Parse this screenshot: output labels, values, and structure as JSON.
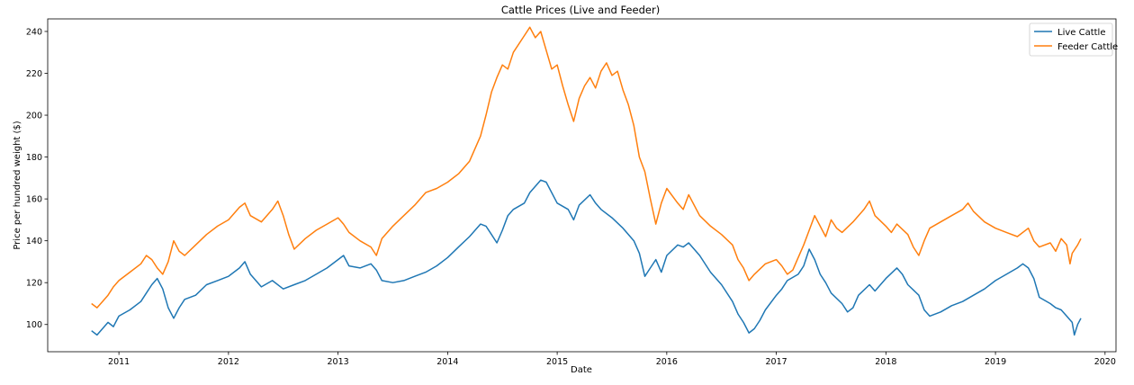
{
  "chart_data": {
    "type": "line",
    "title": "Cattle Prices (Live and Feeder)",
    "xlabel": "Date",
    "ylabel": "Price per hundred weight ($)",
    "xlim": [
      2010.35,
      2020.1
    ],
    "ylim": [
      87,
      246
    ],
    "x_ticks": [
      "2011",
      "2012",
      "2013",
      "2014",
      "2015",
      "2016",
      "2017",
      "2018",
      "2019",
      "2020"
    ],
    "y_ticks": [
      100,
      120,
      140,
      160,
      180,
      200,
      220,
      240
    ],
    "grid": false,
    "legend_position": "top-right",
    "series": [
      {
        "name": "Live Cattle",
        "color": "#1f77b4",
        "points": [
          [
            2010.75,
            97
          ],
          [
            2010.8,
            95
          ],
          [
            2010.85,
            98
          ],
          [
            2010.9,
            101
          ],
          [
            2010.95,
            99
          ],
          [
            2011.0,
            104
          ],
          [
            2011.1,
            107
          ],
          [
            2011.2,
            111
          ],
          [
            2011.25,
            115
          ],
          [
            2011.3,
            119
          ],
          [
            2011.35,
            122
          ],
          [
            2011.4,
            117
          ],
          [
            2011.45,
            108
          ],
          [
            2011.5,
            103
          ],
          [
            2011.55,
            108
          ],
          [
            2011.6,
            112
          ],
          [
            2011.7,
            114
          ],
          [
            2011.8,
            119
          ],
          [
            2011.9,
            121
          ],
          [
            2012.0,
            123
          ],
          [
            2012.1,
            127
          ],
          [
            2012.15,
            130
          ],
          [
            2012.2,
            124
          ],
          [
            2012.3,
            118
          ],
          [
            2012.4,
            121
          ],
          [
            2012.5,
            117
          ],
          [
            2012.6,
            119
          ],
          [
            2012.7,
            121
          ],
          [
            2012.8,
            124
          ],
          [
            2012.9,
            127
          ],
          [
            2013.0,
            131
          ],
          [
            2013.05,
            133
          ],
          [
            2013.1,
            128
          ],
          [
            2013.2,
            127
          ],
          [
            2013.3,
            129
          ],
          [
            2013.35,
            126
          ],
          [
            2013.4,
            121
          ],
          [
            2013.5,
            120
          ],
          [
            2013.6,
            121
          ],
          [
            2013.7,
            123
          ],
          [
            2013.8,
            125
          ],
          [
            2013.9,
            128
          ],
          [
            2014.0,
            132
          ],
          [
            2014.1,
            137
          ],
          [
            2014.2,
            142
          ],
          [
            2014.3,
            148
          ],
          [
            2014.35,
            147
          ],
          [
            2014.4,
            143
          ],
          [
            2014.45,
            139
          ],
          [
            2014.5,
            145
          ],
          [
            2014.55,
            152
          ],
          [
            2014.6,
            155
          ],
          [
            2014.7,
            158
          ],
          [
            2014.75,
            163
          ],
          [
            2014.85,
            169
          ],
          [
            2014.9,
            168
          ],
          [
            2015.0,
            158
          ],
          [
            2015.1,
            155
          ],
          [
            2015.15,
            150
          ],
          [
            2015.2,
            157
          ],
          [
            2015.3,
            162
          ],
          [
            2015.35,
            158
          ],
          [
            2015.4,
            155
          ],
          [
            2015.5,
            151
          ],
          [
            2015.6,
            146
          ],
          [
            2015.7,
            140
          ],
          [
            2015.75,
            134
          ],
          [
            2015.8,
            123
          ],
          [
            2015.85,
            127
          ],
          [
            2015.9,
            131
          ],
          [
            2015.95,
            125
          ],
          [
            2016.0,
            133
          ],
          [
            2016.1,
            138
          ],
          [
            2016.15,
            137
          ],
          [
            2016.2,
            139
          ],
          [
            2016.3,
            133
          ],
          [
            2016.4,
            125
          ],
          [
            2016.5,
            119
          ],
          [
            2016.6,
            111
          ],
          [
            2016.65,
            105
          ],
          [
            2016.7,
            101
          ],
          [
            2016.75,
            96
          ],
          [
            2016.8,
            98
          ],
          [
            2016.85,
            102
          ],
          [
            2016.9,
            107
          ],
          [
            2017.0,
            114
          ],
          [
            2017.05,
            117
          ],
          [
            2017.1,
            121
          ],
          [
            2017.2,
            124
          ],
          [
            2017.25,
            128
          ],
          [
            2017.3,
            136
          ],
          [
            2017.35,
            131
          ],
          [
            2017.4,
            124
          ],
          [
            2017.45,
            120
          ],
          [
            2017.5,
            115
          ],
          [
            2017.6,
            110
          ],
          [
            2017.65,
            106
          ],
          [
            2017.7,
            108
          ],
          [
            2017.75,
            114
          ],
          [
            2017.85,
            119
          ],
          [
            2017.9,
            116
          ],
          [
            2018.0,
            122
          ],
          [
            2018.1,
            127
          ],
          [
            2018.15,
            124
          ],
          [
            2018.2,
            119
          ],
          [
            2018.3,
            114
          ],
          [
            2018.35,
            107
          ],
          [
            2018.4,
            104
          ],
          [
            2018.5,
            106
          ],
          [
            2018.6,
            109
          ],
          [
            2018.7,
            111
          ],
          [
            2018.8,
            114
          ],
          [
            2018.9,
            117
          ],
          [
            2019.0,
            121
          ],
          [
            2019.1,
            124
          ],
          [
            2019.2,
            127
          ],
          [
            2019.25,
            129
          ],
          [
            2019.3,
            127
          ],
          [
            2019.35,
            122
          ],
          [
            2019.4,
            113
          ],
          [
            2019.5,
            110
          ],
          [
            2019.55,
            108
          ],
          [
            2019.6,
            107
          ],
          [
            2019.65,
            104
          ],
          [
            2019.7,
            101
          ],
          [
            2019.72,
            95
          ],
          [
            2019.75,
            100
          ],
          [
            2019.78,
            103
          ]
        ]
      },
      {
        "name": "Feeder Cattle",
        "color": "#ff7f0e",
        "points": [
          [
            2010.75,
            110
          ],
          [
            2010.8,
            108
          ],
          [
            2010.85,
            111
          ],
          [
            2010.9,
            114
          ],
          [
            2010.95,
            118
          ],
          [
            2011.0,
            121
          ],
          [
            2011.1,
            125
          ],
          [
            2011.2,
            129
          ],
          [
            2011.25,
            133
          ],
          [
            2011.3,
            131
          ],
          [
            2011.35,
            127
          ],
          [
            2011.4,
            124
          ],
          [
            2011.45,
            130
          ],
          [
            2011.5,
            140
          ],
          [
            2011.55,
            135
          ],
          [
            2011.6,
            133
          ],
          [
            2011.7,
            138
          ],
          [
            2011.8,
            143
          ],
          [
            2011.9,
            147
          ],
          [
            2012.0,
            150
          ],
          [
            2012.1,
            156
          ],
          [
            2012.15,
            158
          ],
          [
            2012.2,
            152
          ],
          [
            2012.3,
            149
          ],
          [
            2012.4,
            155
          ],
          [
            2012.45,
            159
          ],
          [
            2012.5,
            152
          ],
          [
            2012.55,
            143
          ],
          [
            2012.6,
            136
          ],
          [
            2012.7,
            141
          ],
          [
            2012.8,
            145
          ],
          [
            2012.9,
            148
          ],
          [
            2013.0,
            151
          ],
          [
            2013.05,
            148
          ],
          [
            2013.1,
            144
          ],
          [
            2013.2,
            140
          ],
          [
            2013.3,
            137
          ],
          [
            2013.35,
            133
          ],
          [
            2013.4,
            141
          ],
          [
            2013.5,
            147
          ],
          [
            2013.6,
            152
          ],
          [
            2013.7,
            157
          ],
          [
            2013.8,
            163
          ],
          [
            2013.9,
            165
          ],
          [
            2014.0,
            168
          ],
          [
            2014.1,
            172
          ],
          [
            2014.2,
            178
          ],
          [
            2014.3,
            190
          ],
          [
            2014.35,
            200
          ],
          [
            2014.4,
            211
          ],
          [
            2014.45,
            218
          ],
          [
            2014.5,
            224
          ],
          [
            2014.55,
            222
          ],
          [
            2014.6,
            230
          ],
          [
            2014.7,
            238
          ],
          [
            2014.75,
            242
          ],
          [
            2014.8,
            237
          ],
          [
            2014.85,
            240
          ],
          [
            2014.9,
            231
          ],
          [
            2014.95,
            222
          ],
          [
            2015.0,
            224
          ],
          [
            2015.05,
            214
          ],
          [
            2015.1,
            205
          ],
          [
            2015.15,
            197
          ],
          [
            2015.2,
            208
          ],
          [
            2015.25,
            214
          ],
          [
            2015.3,
            218
          ],
          [
            2015.35,
            213
          ],
          [
            2015.4,
            221
          ],
          [
            2015.45,
            225
          ],
          [
            2015.5,
            219
          ],
          [
            2015.55,
            221
          ],
          [
            2015.6,
            212
          ],
          [
            2015.65,
            205
          ],
          [
            2015.7,
            195
          ],
          [
            2015.75,
            180
          ],
          [
            2015.8,
            173
          ],
          [
            2015.85,
            160
          ],
          [
            2015.9,
            148
          ],
          [
            2015.95,
            158
          ],
          [
            2016.0,
            165
          ],
          [
            2016.1,
            158
          ],
          [
            2016.15,
            155
          ],
          [
            2016.2,
            162
          ],
          [
            2016.3,
            152
          ],
          [
            2016.4,
            147
          ],
          [
            2016.5,
            143
          ],
          [
            2016.6,
            138
          ],
          [
            2016.65,
            131
          ],
          [
            2016.7,
            127
          ],
          [
            2016.75,
            121
          ],
          [
            2016.8,
            124
          ],
          [
            2016.9,
            129
          ],
          [
            2017.0,
            131
          ],
          [
            2017.05,
            128
          ],
          [
            2017.1,
            124
          ],
          [
            2017.15,
            126
          ],
          [
            2017.2,
            132
          ],
          [
            2017.25,
            138
          ],
          [
            2017.3,
            145
          ],
          [
            2017.35,
            152
          ],
          [
            2017.4,
            147
          ],
          [
            2017.45,
            142
          ],
          [
            2017.5,
            150
          ],
          [
            2017.55,
            146
          ],
          [
            2017.6,
            144
          ],
          [
            2017.7,
            149
          ],
          [
            2017.8,
            155
          ],
          [
            2017.85,
            159
          ],
          [
            2017.9,
            152
          ],
          [
            2018.0,
            147
          ],
          [
            2018.05,
            144
          ],
          [
            2018.1,
            148
          ],
          [
            2018.2,
            143
          ],
          [
            2018.25,
            137
          ],
          [
            2018.3,
            133
          ],
          [
            2018.35,
            140
          ],
          [
            2018.4,
            146
          ],
          [
            2018.5,
            149
          ],
          [
            2018.6,
            152
          ],
          [
            2018.7,
            155
          ],
          [
            2018.75,
            158
          ],
          [
            2018.8,
            154
          ],
          [
            2018.9,
            149
          ],
          [
            2019.0,
            146
          ],
          [
            2019.1,
            144
          ],
          [
            2019.2,
            142
          ],
          [
            2019.3,
            146
          ],
          [
            2019.35,
            140
          ],
          [
            2019.4,
            137
          ],
          [
            2019.5,
            139
          ],
          [
            2019.55,
            135
          ],
          [
            2019.6,
            141
          ],
          [
            2019.65,
            138
          ],
          [
            2019.68,
            129
          ],
          [
            2019.7,
            134
          ],
          [
            2019.75,
            138
          ],
          [
            2019.78,
            141
          ]
        ]
      }
    ]
  }
}
